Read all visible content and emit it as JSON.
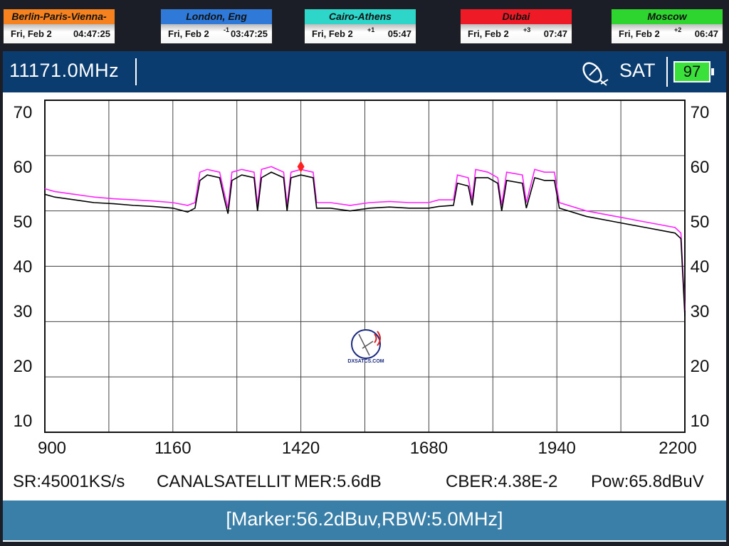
{
  "clocks": [
    {
      "city": "Berlin-Paris-Vienna-Roma",
      "date": "Fri, Feb 2",
      "offset": "",
      "time": "04:47:25",
      "color": "#f5821f"
    },
    {
      "city": "London, Eng",
      "date": "Fri, Feb 2",
      "offset": "-1",
      "time": "03:47:25",
      "color": "#2f7ad8"
    },
    {
      "city": "Cairo-Athens",
      "date": "Fri, Feb 2",
      "offset": "+1",
      "time": "05:47",
      "color": "#2ed6c9"
    },
    {
      "city": "Dubai",
      "date": "Fri, Feb 2",
      "offset": "+3",
      "time": "07:47",
      "color": "#ee1a26"
    },
    {
      "city": "Moscow",
      "date": "Fri, Feb 2",
      "offset": "+2",
      "time": "06:47",
      "color": "#2fd52f"
    }
  ],
  "header": {
    "frequency": "11171.0MHz",
    "mode": "SAT",
    "battery": "97",
    "satellite_icon": "satellite-dish-icon"
  },
  "info": {
    "sr": "SR:45001KS/s",
    "channel": "CANALSATELLIT",
    "mer": "MER:5.6dB",
    "cber": "CBER:4.38E-2",
    "power": "Pow:65.8dBuV"
  },
  "footer": {
    "marker": "[Marker:56.2dBuv,RBW:5.0MHz]"
  },
  "logo": {
    "text": "DXSATCS.COM"
  },
  "chart_data": {
    "type": "line",
    "xlim": [
      900,
      2200
    ],
    "ylim": [
      10,
      70
    ],
    "grid": true,
    "x_ticks": [
      "900",
      "1160",
      "1420",
      "1680",
      "1940",
      "2200"
    ],
    "y_ticks": [
      "70",
      "60",
      "50",
      "40",
      "30",
      "20",
      "10"
    ],
    "marker": {
      "x": 1420,
      "y": 58,
      "color": "#ff2020"
    },
    "series": [
      {
        "color": "#000000",
        "points": [
          [
            900,
            53
          ],
          [
            920,
            52.5
          ],
          [
            960,
            52
          ],
          [
            1000,
            51.5
          ],
          [
            1040,
            51.3
          ],
          [
            1080,
            51
          ],
          [
            1120,
            50.8
          ],
          [
            1160,
            50.5
          ],
          [
            1190,
            49.8
          ],
          [
            1205,
            50.5
          ],
          [
            1215,
            55.5
          ],
          [
            1230,
            56.5
          ],
          [
            1255,
            56
          ],
          [
            1265,
            52
          ],
          [
            1272,
            49.5
          ],
          [
            1280,
            55.5
          ],
          [
            1300,
            56.5
          ],
          [
            1325,
            56
          ],
          [
            1332,
            50
          ],
          [
            1340,
            56
          ],
          [
            1360,
            57
          ],
          [
            1385,
            56
          ],
          [
            1392,
            50
          ],
          [
            1400,
            56
          ],
          [
            1420,
            56.5
          ],
          [
            1445,
            56
          ],
          [
            1452,
            50.5
          ],
          [
            1480,
            50.5
          ],
          [
            1520,
            50
          ],
          [
            1560,
            50.5
          ],
          [
            1600,
            50.7
          ],
          [
            1640,
            50.5
          ],
          [
            1680,
            50.5
          ],
          [
            1700,
            50.8
          ],
          [
            1730,
            51
          ],
          [
            1738,
            55
          ],
          [
            1760,
            54.5
          ],
          [
            1768,
            51
          ],
          [
            1775,
            56
          ],
          [
            1800,
            56
          ],
          [
            1820,
            55
          ],
          [
            1828,
            50
          ],
          [
            1838,
            55.5
          ],
          [
            1870,
            55
          ],
          [
            1878,
            50.5
          ],
          [
            1895,
            56
          ],
          [
            1915,
            55.5
          ],
          [
            1935,
            55.5
          ],
          [
            1945,
            50.5
          ],
          [
            2000,
            49
          ],
          [
            2060,
            48
          ],
          [
            2120,
            47
          ],
          [
            2180,
            46
          ],
          [
            2192,
            45
          ],
          [
            2200,
            31
          ]
        ]
      },
      {
        "color": "#ff22ff",
        "points": [
          [
            900,
            54
          ],
          [
            920,
            53.5
          ],
          [
            960,
            53
          ],
          [
            1000,
            52.5
          ],
          [
            1040,
            52.2
          ],
          [
            1080,
            52
          ],
          [
            1120,
            51.8
          ],
          [
            1160,
            51.5
          ],
          [
            1190,
            51
          ],
          [
            1205,
            51.5
          ],
          [
            1215,
            57
          ],
          [
            1230,
            57.5
          ],
          [
            1255,
            57
          ],
          [
            1265,
            53
          ],
          [
            1272,
            50.5
          ],
          [
            1280,
            57
          ],
          [
            1300,
            57.5
          ],
          [
            1325,
            57
          ],
          [
            1332,
            51
          ],
          [
            1340,
            57.5
          ],
          [
            1360,
            58
          ],
          [
            1385,
            57
          ],
          [
            1392,
            51
          ],
          [
            1400,
            57
          ],
          [
            1420,
            57.5
          ],
          [
            1445,
            57
          ],
          [
            1452,
            51.5
          ],
          [
            1480,
            51.5
          ],
          [
            1520,
            51
          ],
          [
            1560,
            51.5
          ],
          [
            1600,
            51.7
          ],
          [
            1640,
            51.5
          ],
          [
            1680,
            51.5
          ],
          [
            1700,
            52
          ],
          [
            1730,
            52
          ],
          [
            1738,
            56.5
          ],
          [
            1760,
            56
          ],
          [
            1768,
            52
          ],
          [
            1775,
            57.5
          ],
          [
            1800,
            57
          ],
          [
            1820,
            56
          ],
          [
            1828,
            51
          ],
          [
            1838,
            57
          ],
          [
            1870,
            56.5
          ],
          [
            1878,
            51.5
          ],
          [
            1895,
            57.5
          ],
          [
            1915,
            57
          ],
          [
            1935,
            57
          ],
          [
            1945,
            51.5
          ],
          [
            2000,
            50
          ],
          [
            2060,
            49
          ],
          [
            2120,
            48
          ],
          [
            2180,
            47
          ],
          [
            2192,
            46
          ],
          [
            2200,
            32
          ]
        ]
      }
    ]
  }
}
